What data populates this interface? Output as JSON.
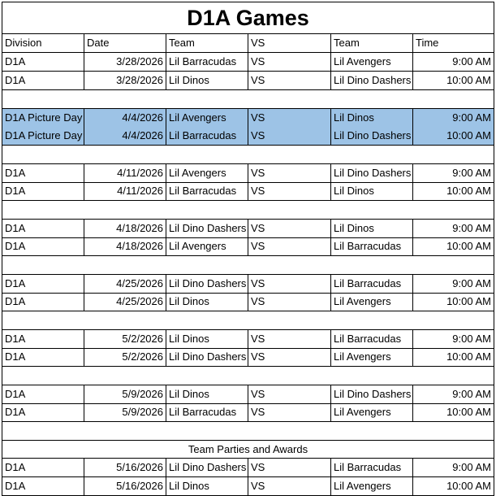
{
  "title": "D1A Games",
  "headers": [
    "Division",
    "Date",
    "Team",
    "VS",
    "Team",
    "Time"
  ],
  "groups": [
    [
      {
        "division": "D1A",
        "date": "3/28/2026",
        "team": "Lil Barracudas",
        "vs": "VS",
        "opponent": "Lil Avengers",
        "time": "9:00 AM"
      },
      {
        "division": "D1A",
        "date": "3/28/2026",
        "team": "Lil Dinos",
        "vs": "VS",
        "opponent": "Lil Dino Dashers",
        "time": "10:00 AM"
      }
    ],
    [
      {
        "division": "D1A Picture Day",
        "date": "4/4/2026",
        "team": "Lil Avengers",
        "vs": "VS",
        "opponent": "Lil Dinos",
        "time": "9:00 AM"
      },
      {
        "division": "D1A Picture Day",
        "date": "4/4/2026",
        "team": "Lil Barracudas",
        "vs": "VS",
        "opponent": "Lil Dino Dashers",
        "time": "10:00 AM"
      }
    ],
    [
      {
        "division": "D1A",
        "date": "4/11/2026",
        "team": "Lil Avengers",
        "vs": "VS",
        "opponent": "Lil Dino Dashers",
        "time": "9:00 AM"
      },
      {
        "division": "D1A",
        "date": "4/11/2026",
        "team": "Lil Barracudas",
        "vs": "VS",
        "opponent": "Lil Dinos",
        "time": "10:00 AM"
      }
    ],
    [
      {
        "division": "D1A",
        "date": "4/18/2026",
        "team": "Lil Dino Dashers",
        "vs": "VS",
        "opponent": "Lil Dinos",
        "time": "9:00 AM"
      },
      {
        "division": "D1A",
        "date": "4/18/2026",
        "team": "Lil Avengers",
        "vs": "VS",
        "opponent": "Lil Barracudas",
        "time": "10:00 AM"
      }
    ],
    [
      {
        "division": "D1A",
        "date": "4/25/2026",
        "team": "Lil Dino Dashers",
        "vs": "VS",
        "opponent": "Lil Barracudas",
        "time": "9:00 AM"
      },
      {
        "division": "D1A",
        "date": "4/25/2026",
        "team": "Lil Dinos",
        "vs": "VS",
        "opponent": "Lil Avengers",
        "time": "10:00 AM"
      }
    ],
    [
      {
        "division": "D1A",
        "date": "5/2/2026",
        "team": "Lil Dinos",
        "vs": "VS",
        "opponent": "Lil Barracudas",
        "time": "9:00 AM"
      },
      {
        "division": "D1A",
        "date": "5/2/2026",
        "team": "Lil Dino Dashers",
        "vs": "VS",
        "opponent": "Lil Avengers",
        "time": "10:00 AM"
      }
    ],
    [
      {
        "division": "D1A",
        "date": "5/9/2026",
        "team": "Lil Dinos",
        "vs": "VS",
        "opponent": "Lil Dino Dashers",
        "time": "9:00 AM"
      },
      {
        "division": "D1A",
        "date": "5/9/2026",
        "team": "Lil Barracudas",
        "vs": "VS",
        "opponent": "Lil Avengers",
        "time": "10:00 AM"
      }
    ]
  ],
  "highlight_group": 1,
  "highlight_color": "#9dc3e6",
  "banner": "Team Parties and Awards",
  "final_group": [
    {
      "division": "D1A",
      "date": "5/16/2026",
      "team": "Lil Dino Dashers",
      "vs": "VS",
      "opponent": "Lil Barracudas",
      "time": "9:00 AM"
    },
    {
      "division": "D1A",
      "date": "5/16/2026",
      "team": "Lil Dinos",
      "vs": "VS",
      "opponent": "Lil Avengers",
      "time": "10:00 AM"
    }
  ]
}
